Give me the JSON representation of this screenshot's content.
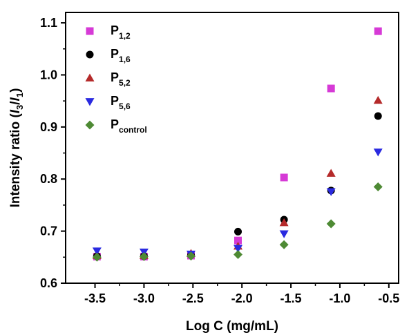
{
  "chart_data": {
    "type": "scatter",
    "title": "",
    "xlabel": "Log C (mg/mL)",
    "ylabel_parts": [
      "Intensity ratio (",
      "I",
      "3",
      "/",
      "I",
      "1",
      ")"
    ],
    "xlim": [
      -3.8,
      -0.4
    ],
    "ylim": [
      0.6,
      1.12
    ],
    "x_ticks": [
      -3.5,
      -3.0,
      -2.5,
      -2.0,
      -1.5,
      -1.0,
      -0.5
    ],
    "x_tick_labels": [
      "-3.5",
      "-3.0",
      "-2.5",
      "-2.0",
      "-1.5",
      "-1.0",
      "-0.5"
    ],
    "y_ticks": [
      0.6,
      0.7,
      0.8,
      0.9,
      1.0,
      1.1
    ],
    "y_tick_labels": [
      "0.6",
      "0.7",
      "0.8",
      "0.9",
      "1.0",
      "1.1"
    ],
    "grid": false,
    "legend_position": "top-left",
    "series": [
      {
        "name": "P",
        "name_sub": "1,2",
        "marker": "square",
        "color": "#d63ad6",
        "points": [
          [
            -3.48,
            0.651
          ],
          [
            -3.0,
            0.651
          ],
          [
            -2.52,
            0.653
          ],
          [
            -2.04,
            0.682
          ],
          [
            -1.57,
            0.803
          ],
          [
            -1.09,
            0.974
          ],
          [
            -0.61,
            1.084
          ]
        ]
      },
      {
        "name": "P",
        "name_sub": "1,6",
        "marker": "circle",
        "color": "#000000",
        "points": [
          [
            -3.48,
            0.652
          ],
          [
            -3.0,
            0.652
          ],
          [
            -2.52,
            0.654
          ],
          [
            -2.04,
            0.699
          ],
          [
            -1.57,
            0.722
          ],
          [
            -1.09,
            0.778
          ],
          [
            -0.61,
            0.921
          ]
        ]
      },
      {
        "name": "P",
        "name_sub": "5,2",
        "marker": "triangle-up",
        "color": "#b52a2a",
        "points": [
          [
            -3.48,
            0.653
          ],
          [
            -3.0,
            0.653
          ],
          [
            -2.52,
            0.657
          ],
          [
            -2.04,
            0.671
          ],
          [
            -1.57,
            0.716
          ],
          [
            -1.09,
            0.811
          ],
          [
            -0.61,
            0.951
          ]
        ]
      },
      {
        "name": "P",
        "name_sub": "5,6",
        "marker": "triangle-down",
        "color": "#2a2ae0",
        "points": [
          [
            -3.48,
            0.662
          ],
          [
            -3.0,
            0.66
          ],
          [
            -2.52,
            0.656
          ],
          [
            -2.04,
            0.667
          ],
          [
            -1.57,
            0.695
          ],
          [
            -1.09,
            0.776
          ],
          [
            -0.61,
            0.852
          ]
        ]
      },
      {
        "name": "P",
        "name_sub": "control",
        "marker": "diamond",
        "color": "#4e8a34",
        "points": [
          [
            -3.48,
            0.65
          ],
          [
            -3.0,
            0.651
          ],
          [
            -2.52,
            0.652
          ],
          [
            -2.04,
            0.655
          ],
          [
            -1.57,
            0.674
          ],
          [
            -1.09,
            0.714
          ],
          [
            -0.61,
            0.785
          ]
        ]
      }
    ]
  }
}
